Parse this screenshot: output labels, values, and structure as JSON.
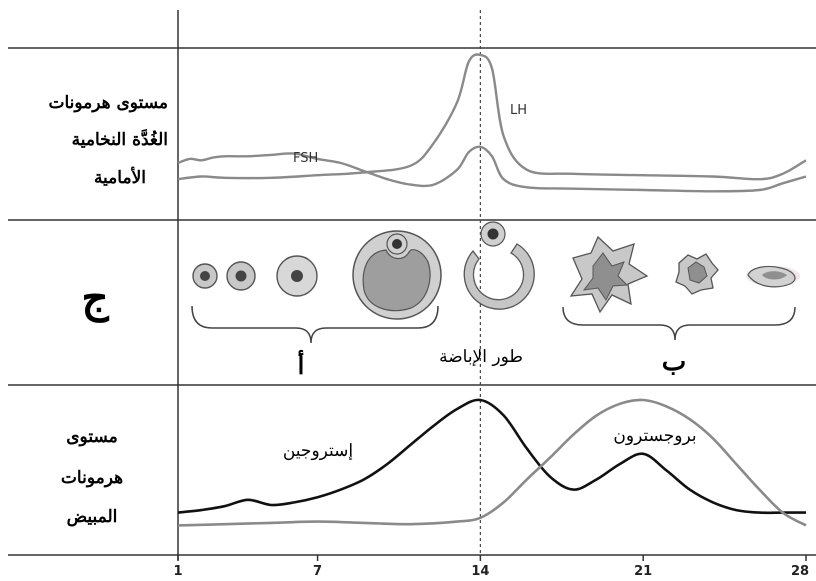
{
  "colors": {
    "line_dark": "#111111",
    "line_gray": "#8a8a8a",
    "follicle_fill": "#c8c8c8",
    "follicle_dark": "#444444",
    "mauve": "#9b8a8a"
  },
  "labels": {
    "pituitary_title": [
      "مستوى هرمونات",
      "الغُدَّة النخامية",
      "الأمامية"
    ],
    "ovary_section": "ج",
    "ovarian_title": [
      "مستوى",
      "هرمونات",
      "المبيض"
    ],
    "lh": "LH",
    "fsh": "FSH",
    "ovulation": "طور الإباضة",
    "follicular_phase": "أ",
    "luteal_phase": "ب",
    "estrogen": "إستروجين",
    "progesterone": "بروجسترون"
  },
  "chart_data": {
    "type": "line",
    "x_ticks": [
      1,
      7,
      14,
      21,
      28
    ],
    "xlim": [
      1,
      28
    ],
    "ovulation_day": 14,
    "panels": [
      {
        "name": "anterior_pituitary",
        "series": [
          {
            "name": "LH",
            "x": [
              1,
              2,
              3,
              5,
              7,
              9,
              11,
              12,
              13,
              13.5,
              14,
              14.5,
              15,
              16,
              18,
              21,
              24,
              26,
              27,
              28
            ],
            "y": [
              0.08,
              0.1,
              0.09,
              0.09,
              0.11,
              0.13,
              0.18,
              0.35,
              0.65,
              0.95,
              1.0,
              0.9,
              0.4,
              0.15,
              0.12,
              0.11,
              0.1,
              0.08,
              0.12,
              0.22
            ]
          },
          {
            "name": "FSH",
            "x": [
              1,
              1.5,
              2,
              2.5,
              3,
              4,
              5,
              6,
              7,
              8,
              9,
              10,
              11,
              12,
              13,
              13.5,
              14,
              14.5,
              15,
              16,
              18,
              21,
              24,
              26,
              27,
              28
            ],
            "y": [
              0.2,
              0.23,
              0.22,
              0.24,
              0.25,
              0.25,
              0.26,
              0.27,
              0.23,
              0.2,
              0.14,
              0.08,
              0.04,
              0.04,
              0.15,
              0.28,
              0.32,
              0.25,
              0.08,
              0.02,
              0.01,
              0.0,
              -0.01,
              0.0,
              0.05,
              0.1
            ]
          }
        ]
      },
      {
        "name": "ovarian_hormones",
        "series": [
          {
            "name": "إستروجين",
            "x": [
              1,
              2,
              3,
              4,
              5,
              6,
              7,
              8,
              9,
              10,
              11,
              12,
              13,
              14,
              15,
              16,
              17,
              18,
              19,
              20,
              21,
              22,
              23,
              24,
              25,
              26,
              27,
              28
            ],
            "y": [
              0.12,
              0.14,
              0.17,
              0.22,
              0.18,
              0.2,
              0.24,
              0.3,
              0.38,
              0.5,
              0.65,
              0.8,
              0.93,
              1.0,
              0.88,
              0.62,
              0.4,
              0.3,
              0.38,
              0.5,
              0.58,
              0.45,
              0.3,
              0.2,
              0.14,
              0.12,
              0.12,
              0.12
            ]
          },
          {
            "name": "بروجسترون",
            "x": [
              1,
              3,
              5,
              7,
              9,
              11,
              13,
              14,
              15,
              16,
              17,
              18,
              19,
              20,
              21,
              22,
              23,
              24,
              25,
              26,
              27,
              28
            ],
            "y": [
              0.02,
              0.03,
              0.04,
              0.05,
              0.04,
              0.03,
              0.05,
              0.08,
              0.2,
              0.38,
              0.55,
              0.73,
              0.88,
              0.97,
              1.0,
              0.95,
              0.85,
              0.7,
              0.5,
              0.3,
              0.12,
              0.02
            ]
          }
        ]
      }
    ]
  }
}
